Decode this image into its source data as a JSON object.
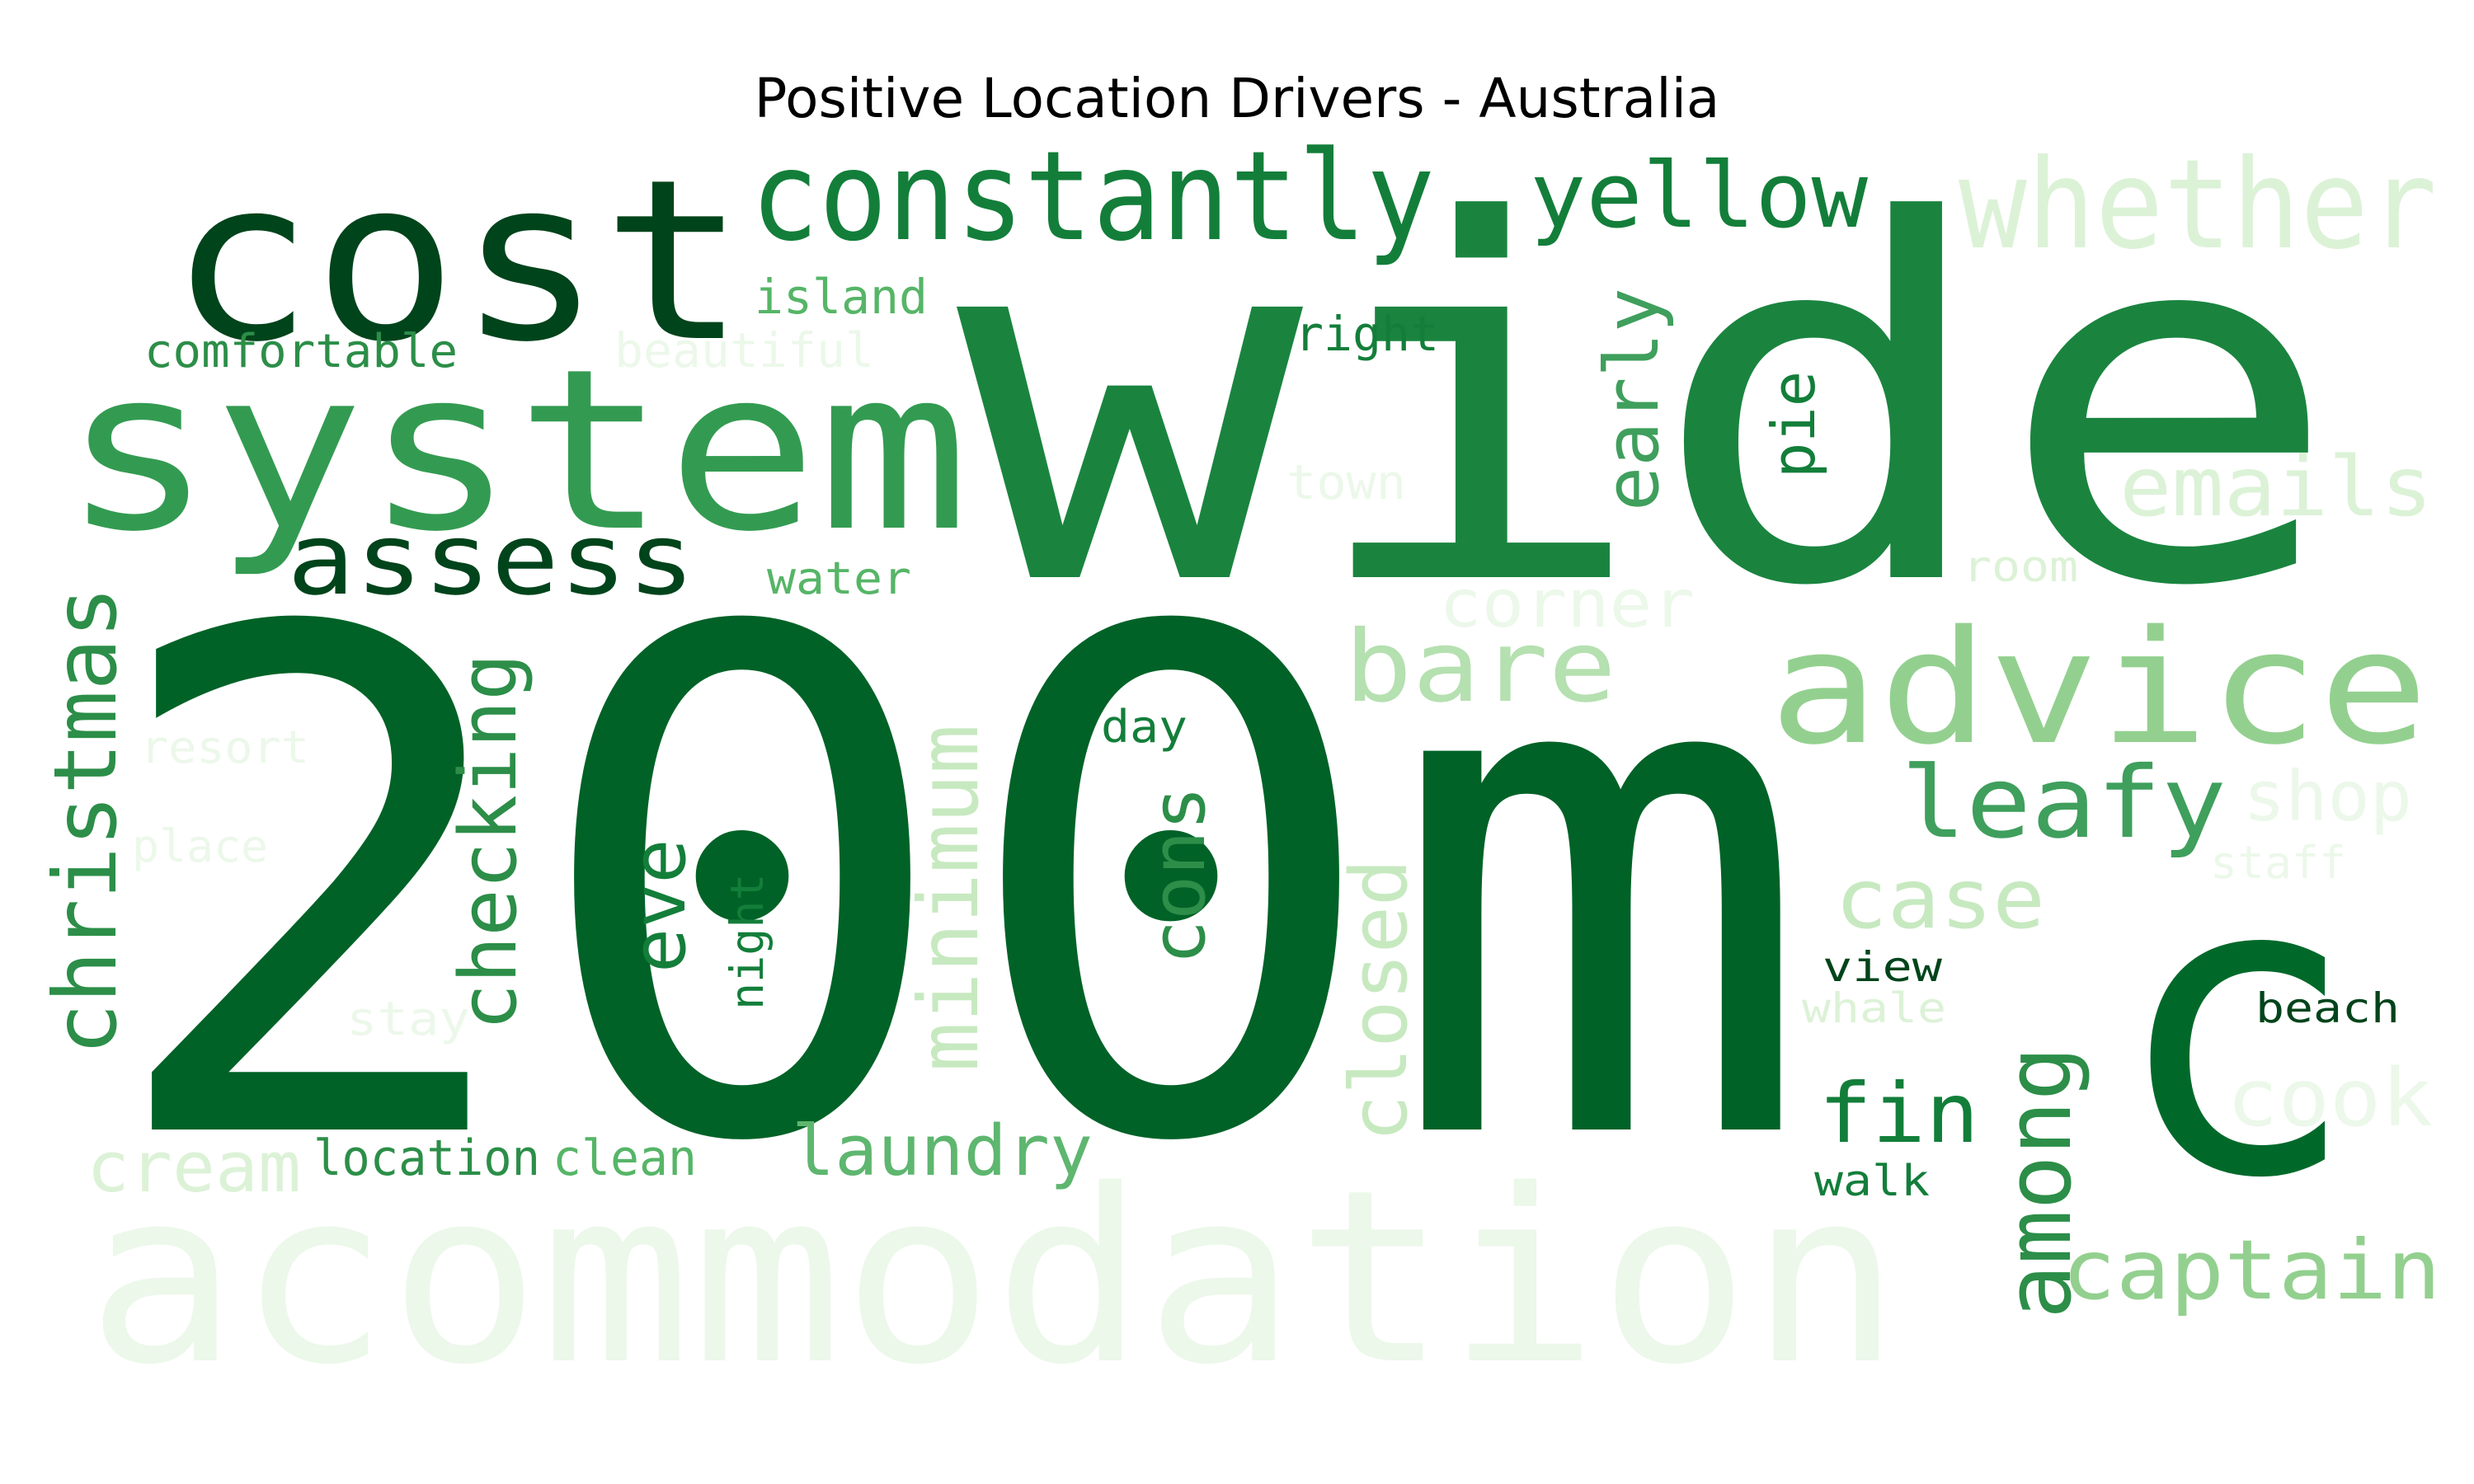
{
  "title": "Positive Location Drivers - Australia",
  "palette": [
    "#00441b",
    "#005a24",
    "#006227",
    "#00692a",
    "#137e3a",
    "#1a843f",
    "#2c8e48",
    "#339b51",
    "#3f9f5c",
    "#56b567",
    "#5eb66f",
    "#7dc67f",
    "#93d08f",
    "#b5e0b0",
    "#c7e9c0",
    "#dcf2d7",
    "#ecf8ea"
  ],
  "words": [
    {
      "text": "200m",
      "color": "#006227"
    },
    {
      "text": "wide",
      "color": "#1a843f"
    },
    {
      "text": "c",
      "color": "#00692a"
    },
    {
      "text": "acommodation",
      "color": "#ecf8ea"
    },
    {
      "text": "cost",
      "color": "#00441b"
    },
    {
      "text": "system",
      "color": "#339b51"
    },
    {
      "text": "constantly",
      "color": "#137e3a"
    },
    {
      "text": "whether",
      "color": "#dcf2d7"
    },
    {
      "text": "advice",
      "color": "#93d08f"
    },
    {
      "text": "yellow",
      "color": "#137e3a"
    },
    {
      "text": "assess",
      "color": "#00441b"
    },
    {
      "text": "bare",
      "color": "#b5e0b0"
    },
    {
      "text": "leafy",
      "color": "#3f9f5c"
    },
    {
      "text": "emails",
      "color": "#dcf2d7"
    },
    {
      "text": "early",
      "color": "#3f9f5c"
    },
    {
      "text": "christmas",
      "color": "#2c8e48"
    },
    {
      "text": "checking",
      "color": "#2c8e48"
    },
    {
      "text": "minimum",
      "color": "#c7e9c0"
    },
    {
      "text": "closed",
      "color": "#c7e9c0"
    },
    {
      "text": "cons",
      "color": "#2c8e48"
    },
    {
      "text": "eve",
      "color": "#137e3a"
    },
    {
      "text": "among",
      "color": "#2c8e48"
    },
    {
      "text": "captain",
      "color": "#93d08f"
    },
    {
      "text": "case",
      "color": "#c7e9c0"
    },
    {
      "text": "fin",
      "color": "#137e3a"
    },
    {
      "text": "laundry",
      "color": "#5eb66f"
    },
    {
      "text": "cream",
      "color": "#dcf2d7"
    },
    {
      "text": "location",
      "color": "#2c8e48"
    },
    {
      "text": "clean",
      "color": "#56b567"
    },
    {
      "text": "pie",
      "color": "#137e3a"
    },
    {
      "text": "island",
      "color": "#56b567"
    },
    {
      "text": "comfortable",
      "color": "#2c8e48"
    },
    {
      "text": "beautiful",
      "color": "#ecf8ea"
    },
    {
      "text": "right",
      "color": "#137e3a"
    },
    {
      "text": "town",
      "color": "#ecf8ea"
    },
    {
      "text": "water",
      "color": "#56b567"
    },
    {
      "text": "corner",
      "color": "#ecf8ea"
    },
    {
      "text": "room",
      "color": "#dcf2d7"
    },
    {
      "text": "resort",
      "color": "#ecf8ea"
    },
    {
      "text": "day",
      "color": "#137e3a"
    },
    {
      "text": "shop",
      "color": "#ecf8ea"
    },
    {
      "text": "place",
      "color": "#ecf8ea"
    },
    {
      "text": "staff",
      "color": "#ecf8ea"
    },
    {
      "text": "night",
      "color": "#137e3a"
    },
    {
      "text": "view",
      "color": "#00441b"
    },
    {
      "text": "whale",
      "color": "#dcf2d7"
    },
    {
      "text": "beach",
      "color": "#00441b"
    },
    {
      "text": "stay",
      "color": "#ecf8ea"
    },
    {
      "text": "cook",
      "color": "#ecf8ea"
    },
    {
      "text": "walk",
      "color": "#137e3a"
    }
  ]
}
